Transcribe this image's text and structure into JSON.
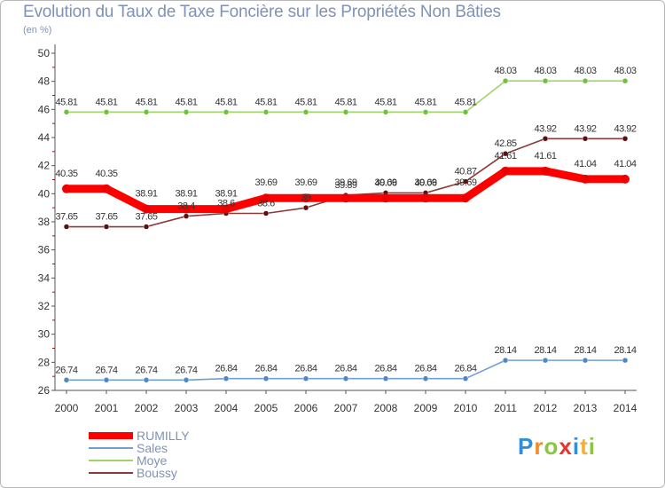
{
  "header": {
    "title": "Evolution du Taux de Taxe Foncière sur les Propriétés Non Bâties",
    "unit": "(en %)"
  },
  "chart_data": {
    "type": "line",
    "title": "Evolution du Taux de Taxe Foncière sur les Propriétés Non Bâties",
    "ylabel": "(en %)",
    "xlabel": "",
    "ylim": [
      26,
      50
    ],
    "yticks": [
      26,
      28,
      30,
      32,
      34,
      36,
      38,
      40,
      42,
      44,
      46,
      48,
      50
    ],
    "grid": false,
    "x": [
      "2000",
      "2001",
      "2002",
      "2003",
      "2004",
      "2005",
      "2006",
      "2007",
      "2008",
      "2009",
      "2010",
      "2011",
      "2012",
      "2013",
      "2014"
    ],
    "series": [
      {
        "name": "RUMILLY",
        "color": "#ff0000",
        "marker_color": "#ee0000",
        "values": [
          40.35,
          40.35,
          38.91,
          38.91,
          38.91,
          39.69,
          39.69,
          39.69,
          39.69,
          39.69,
          39.69,
          41.61,
          41.61,
          41.04,
          41.04
        ],
        "labels": [
          "40.35",
          "40.35",
          "38.91",
          "38.91",
          "38.91",
          "39.69",
          "39.69",
          "39.69",
          "39.69",
          "39.69",
          "39.69",
          "41.61",
          "41.61",
          "41.04",
          "41.04"
        ]
      },
      {
        "name": "Sales",
        "color": "#6fa0d4",
        "marker_color": "#4f86c4",
        "values": [
          26.74,
          26.74,
          26.74,
          26.74,
          26.84,
          26.84,
          26.84,
          26.84,
          26.84,
          26.84,
          26.84,
          28.14,
          28.14,
          28.14,
          28.14
        ],
        "labels": [
          "26.74",
          "26.74",
          "26.74",
          "26.74",
          "26.84",
          "26.84",
          "26.84",
          "26.84",
          "26.84",
          "26.84",
          "26.84",
          "28.14",
          "28.14",
          "28.14",
          "28.14"
        ]
      },
      {
        "name": "Moye",
        "color": "#9fd66a",
        "marker_color": "#6fc03a",
        "values": [
          45.81,
          45.81,
          45.81,
          45.81,
          45.81,
          45.81,
          45.81,
          45.81,
          45.81,
          45.81,
          45.81,
          48.03,
          48.03,
          48.03,
          48.03
        ],
        "labels": [
          "45.81",
          "45.81",
          "45.81",
          "45.81",
          "45.81",
          "45.81",
          "45.81",
          "45.81",
          "45.81",
          "45.81",
          "45.81",
          "48.03",
          "48.03",
          "48.03",
          "48.03"
        ]
      },
      {
        "name": "Boussy",
        "color": "#8b3a3a",
        "marker_color": "#5a1010",
        "values": [
          37.65,
          37.65,
          37.65,
          38.4,
          38.6,
          38.6,
          39.0,
          39.89,
          40.06,
          40.06,
          40.87,
          42.85,
          43.92,
          43.92,
          43.92
        ],
        "labels": [
          "37.65",
          "37.65",
          "37.65",
          "38.4",
          "38.6",
          "38.6",
          "39",
          "39.89",
          "40.06",
          "40.06",
          "40.87",
          "42.85",
          "43.92",
          "43.92",
          "43.92"
        ]
      }
    ]
  },
  "legend": {
    "items": [
      {
        "label": "RUMILLY",
        "color": "#ff0000"
      },
      {
        "label": "Sales",
        "color": "#6fa0d4"
      },
      {
        "label": "Moye",
        "color": "#9fd66a"
      },
      {
        "label": "Boussy",
        "color": "#8b3a3a"
      }
    ]
  },
  "brand": {
    "letters": [
      "P",
      "r",
      "o",
      "x",
      "i",
      "t",
      "i"
    ],
    "colors": [
      "#2f8fd8",
      "#f28c28",
      "#8cc63f",
      "#e8352e",
      "#2f8fd8",
      "#f2b134",
      "#8cc63f"
    ]
  }
}
